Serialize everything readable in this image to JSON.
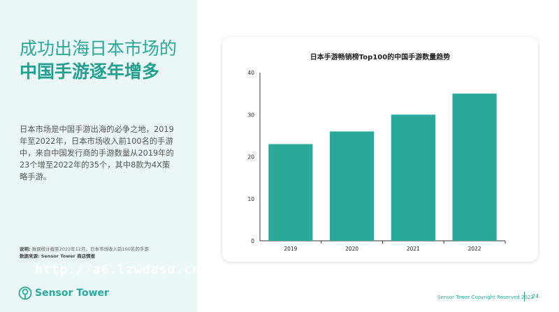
{
  "heading": {
    "line1": "成功出海日本市场的",
    "line2": "中国手游逐年增多"
  },
  "body": "日本市场是中国手游出海的必争之地，2019年至2022年，日本市场收入前100名的手游中，来自中国发行商的手游数量从2019年的23个增至2022年的35个，其中8款为4X策略手游。",
  "note": {
    "label1": "说明:",
    "text1": "数据统计截至2022年12月，日本市场收入前100名的手游",
    "label2": "数据来源:",
    "text2": "Sensor Tower 商店情报"
  },
  "watermark": "http://a6.lzwdasu.cn/",
  "logo": "Sensor Tower",
  "footer": {
    "copyright": "Sensor Tower Copyright Reserved 2022",
    "page": "24"
  },
  "colors": {
    "accent": "#2aa99a",
    "bar": "#2aa99a"
  },
  "chart_data": {
    "type": "bar",
    "title": "日本手游畅销榜Top100的中国手游数量趋势",
    "categories": [
      "2019",
      "2020",
      "2021",
      "2022"
    ],
    "values": [
      23,
      26,
      30,
      35
    ],
    "ylim": [
      0,
      40
    ],
    "yticks": [
      0,
      10,
      20,
      30,
      40
    ],
    "xlabel": "",
    "ylabel": "",
    "grid": false
  }
}
